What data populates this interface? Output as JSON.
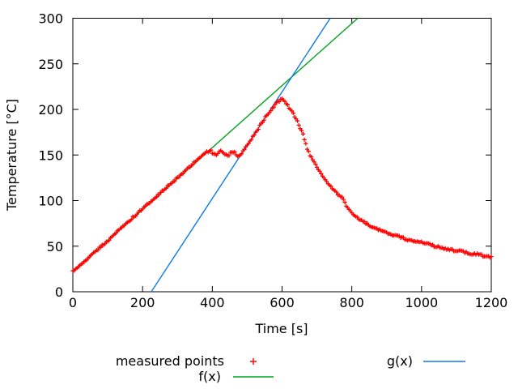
{
  "window": {
    "background": "#ffffff"
  },
  "chart_data": {
    "type": "scatter",
    "title": "",
    "xlabel": "Time [s]",
    "ylabel": "Temperature [°C]",
    "xlim": [
      0,
      1200
    ],
    "ylim": [
      0,
      300
    ],
    "xticks": [
      0,
      200,
      400,
      600,
      800,
      1000,
      1200
    ],
    "yticks": [
      0,
      50,
      100,
      150,
      200,
      250,
      300
    ],
    "grid": false,
    "legend_position": "below plot, two columns",
    "axis_color": "#000000",
    "text_color": "#000000",
    "series": [
      {
        "name": "measured points",
        "type": "points",
        "marker": "plus",
        "color": "#ff0000",
        "sample_interval_s": 4,
        "noise_amp_c": 1.1,
        "anchor_points": [
          [
            0,
            22
          ],
          [
            50,
            39
          ],
          [
            100,
            56
          ],
          [
            150,
            74
          ],
          [
            200,
            91
          ],
          [
            250,
            108
          ],
          [
            300,
            125
          ],
          [
            340,
            139
          ],
          [
            370,
            150
          ],
          [
            377,
            152
          ],
          [
            385,
            154
          ],
          [
            395,
            155
          ],
          [
            403,
            151
          ],
          [
            412,
            150
          ],
          [
            420,
            154
          ],
          [
            430,
            154
          ],
          [
            438,
            150
          ],
          [
            447,
            150
          ],
          [
            455,
            154
          ],
          [
            463,
            153
          ],
          [
            470,
            149
          ],
          [
            477,
            149
          ],
          [
            483,
            151
          ],
          [
            490,
            155
          ],
          [
            505,
            163
          ],
          [
            520,
            172
          ],
          [
            535,
            181
          ],
          [
            550,
            190
          ],
          [
            565,
            198
          ],
          [
            578,
            204
          ],
          [
            590,
            209
          ],
          [
            598,
            211
          ],
          [
            606,
            210
          ],
          [
            614,
            206
          ],
          [
            622,
            201
          ],
          [
            632,
            195
          ],
          [
            642,
            188
          ],
          [
            652,
            180
          ],
          [
            660,
            172
          ],
          [
            668,
            162
          ],
          [
            674,
            155
          ],
          [
            680,
            150
          ],
          [
            690,
            143
          ],
          [
            700,
            137
          ],
          [
            712,
            130
          ],
          [
            724,
            123
          ],
          [
            736,
            117
          ],
          [
            748,
            112
          ],
          [
            760,
            107
          ],
          [
            770,
            104
          ],
          [
            778,
            101
          ],
          [
            782,
            97
          ],
          [
            786,
            93
          ],
          [
            792,
            90
          ],
          [
            800,
            87
          ],
          [
            810,
            83
          ],
          [
            820,
            80
          ],
          [
            832,
            77
          ],
          [
            845,
            74
          ],
          [
            860,
            71
          ],
          [
            880,
            68
          ],
          [
            900,
            65
          ],
          [
            920,
            62
          ],
          [
            940,
            60
          ],
          [
            960,
            57
          ],
          [
            980,
            55
          ],
          [
            1000,
            54
          ],
          [
            1020,
            52
          ],
          [
            1040,
            50
          ],
          [
            1060,
            48
          ],
          [
            1080,
            46
          ],
          [
            1100,
            45
          ],
          [
            1120,
            44
          ],
          [
            1140,
            42
          ],
          [
            1160,
            41
          ],
          [
            1180,
            39
          ],
          [
            1200,
            38
          ]
        ]
      },
      {
        "name": "f(x)",
        "type": "line",
        "color": "#00a41e",
        "points": [
          [
            0,
            22
          ],
          [
            817,
            300
          ]
        ]
      },
      {
        "name": "g(x)",
        "type": "line",
        "color": "#0b7ce8",
        "points": [
          [
            225,
            0
          ],
          [
            738,
            300
          ]
        ]
      }
    ]
  }
}
